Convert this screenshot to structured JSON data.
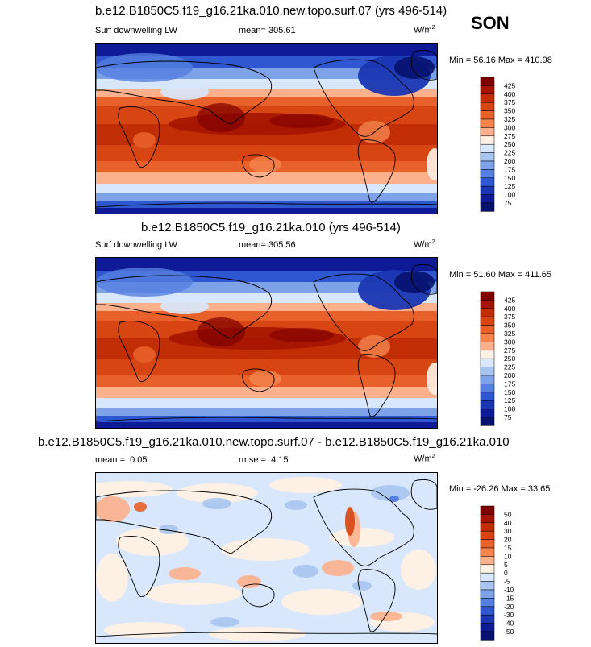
{
  "season": "SON",
  "panels": [
    {
      "title": "b.e12.B1850C5.f19_g16.21ka.010.new.topo.surf.07 (yrs 496-514)",
      "variable": "Surf downwelling LW",
      "stat_label": "mean=",
      "stat_value": "305.61",
      "units": "W/m",
      "units_exp": "2",
      "minmax": "Min =  56.16 Max = 410.98"
    },
    {
      "title": "b.e12.B1850C5.f19_g16.21ka.010 (yrs 496-514)",
      "variable": "Surf downwelling LW",
      "stat_label": "mean=",
      "stat_value": "305.56",
      "units": "W/m",
      "units_exp": "2",
      "minmax": "Min =  51.60 Max = 411.65"
    },
    {
      "title": "b.e12.B1850C5.f19_g16.21ka.010.new.topo.surf.07 - b.e12.B1850C5.f19_g16.21ka.010",
      "mean_label": "mean =",
      "mean_value": "0.05",
      "rmse_label": "rmse =",
      "rmse_value": "4.15",
      "units": "W/m",
      "units_exp": "2",
      "minmax": "Min = -26.26 Max =  33.65"
    }
  ],
  "chart_data": [
    {
      "type": "heatmap",
      "title": "b.e12.B1850C5.f19_g16.21ka.010.new.topo.surf.07 (yrs 496-514)",
      "variable": "Surf downwelling LW",
      "units": "W/m2",
      "mean": 305.61,
      "min": 56.16,
      "max": 410.98,
      "colorbar_levels": [
        "425",
        "400",
        "375",
        "350",
        "325",
        "300",
        "275",
        "250",
        "225",
        "200",
        "175",
        "150",
        "125",
        "100",
        "75"
      ],
      "colors": [
        "#7e0000",
        "#a51400",
        "#c12d05",
        "#d64512",
        "#e8602a",
        "#f5844d",
        "#fdb08c",
        "#fff0e4",
        "#d8e7fb",
        "#a8c5f0",
        "#7da2e8",
        "#5580e0",
        "#2e57d1",
        "#1a36b2",
        "#0e1a96",
        "#07126e"
      ]
    },
    {
      "type": "heatmap",
      "title": "b.e12.B1850C5.f19_g16.21ka.010 (yrs 496-514)",
      "variable": "Surf downwelling LW",
      "units": "W/m2",
      "mean": 305.56,
      "min": 51.6,
      "max": 411.65,
      "colorbar_levels": [
        "425",
        "400",
        "375",
        "350",
        "325",
        "300",
        "275",
        "250",
        "225",
        "200",
        "175",
        "150",
        "125",
        "100",
        "75"
      ],
      "colors": [
        "#7e0000",
        "#a51400",
        "#c12d05",
        "#d64512",
        "#e8602a",
        "#f5844d",
        "#fdb08c",
        "#fff0e4",
        "#d8e7fb",
        "#a8c5f0",
        "#7da2e8",
        "#5580e0",
        "#2e57d1",
        "#1a36b2",
        "#0e1a96",
        "#07126e"
      ]
    },
    {
      "type": "heatmap",
      "title": "b.e12.B1850C5.f19_g16.21ka.010.new.topo.surf.07 - b.e12.B1850C5.f19_g16.21ka.010",
      "units": "W/m2",
      "mean": 0.05,
      "rmse": 4.15,
      "min": -26.26,
      "max": 33.65,
      "colorbar_levels": [
        "50",
        "40",
        "30",
        "20",
        "15",
        "10",
        "5",
        "0",
        "-5",
        "-10",
        "-15",
        "-20",
        "-30",
        "-40",
        "-50"
      ],
      "colors": [
        "#7e0000",
        "#a51400",
        "#c12d05",
        "#d64512",
        "#e8602a",
        "#f5844d",
        "#fdb08c",
        "#fff0e4",
        "#d8e7fb",
        "#a8c5f0",
        "#7da2e8",
        "#5580e0",
        "#2e57d1",
        "#1a36b2",
        "#0e1a96",
        "#07126e"
      ]
    }
  ]
}
